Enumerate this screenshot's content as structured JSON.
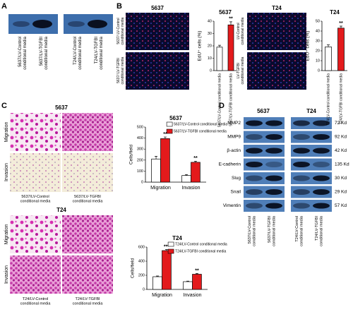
{
  "panel_labels": [
    "A",
    "B",
    "C",
    "D"
  ],
  "panel_a": {
    "labels": [
      [
        "5637/LV-Control",
        "conditional media"
      ],
      [
        "5637/LV-TGFBI",
        "conditional media"
      ],
      [
        "T24/LV-Control",
        "conditional media"
      ],
      [
        "T24/LV-TGFBI",
        "conditional media"
      ]
    ]
  },
  "panel_b": {
    "titles": [
      "5637",
      "T24"
    ],
    "labels": [
      [
        "5637/ LV-Control",
        "conditional media"
      ],
      [
        "5637/ LV-TGFBI",
        "conditional media"
      ],
      [
        "LV-Control",
        "conditional media"
      ],
      [
        "LV-TGFBI",
        "conditional media"
      ]
    ]
  },
  "panel_c": {
    "titles": [
      "5637",
      "T24"
    ],
    "rows": [
      "Migration",
      "Invasion"
    ],
    "labels": [
      [
        "5637/LV-Control",
        "conditional media"
      ],
      [
        "5637/LV-TGFBI",
        "conditional media"
      ],
      [
        "T24/LV-Control",
        "conditional media"
      ],
      [
        "T24/LV-TGFBI",
        "conditional media"
      ]
    ]
  },
  "panel_d": {
    "titles": [
      "5637",
      "T24"
    ],
    "proteins": [
      "MMP2",
      "MMP9",
      "β-actin",
      "E-cadherin",
      "Slug",
      "Snail",
      "Vimentin"
    ],
    "weights": [
      "72 Kd",
      "92 Kd",
      "42 Kd",
      "135 Kd",
      "30 Kd",
      "29 Kd",
      "57 Kd"
    ],
    "labels": [
      [
        "5637/LV-Control",
        "conditional media"
      ],
      [
        "5637/LV-TGFBI",
        "conditional media"
      ],
      [
        "T24/LV-Control",
        "conditional media"
      ],
      [
        "T24/LV-TGFBI",
        "conditional media"
      ]
    ]
  },
  "chart_data": [
    {
      "type": "bar",
      "title": "5637",
      "ylabel": "EdU⁺ cells (%)",
      "categories": [
        "5637/LV-Control conditional media",
        "5637/LV-TGFBI conditional media"
      ],
      "values": [
        19,
        37
      ],
      "errors": [
        1.5,
        2.5
      ],
      "colors": [
        "#ffffff",
        "#e31a1c"
      ],
      "significance": [
        null,
        "**"
      ],
      "ylim": [
        0,
        40
      ],
      "yticks": [
        0,
        10,
        20,
        30,
        40
      ]
    },
    {
      "type": "bar",
      "title": "T24",
      "ylabel": "EdU⁺ cells (%)",
      "categories": [
        "T24/LV-Control conditional media",
        "T24/LV-TGFBI conditional media"
      ],
      "values": [
        24,
        43
      ],
      "errors": [
        2,
        2
      ],
      "colors": [
        "#ffffff",
        "#e31a1c"
      ],
      "significance": [
        null,
        "**"
      ],
      "ylim": [
        0,
        50
      ],
      "yticks": [
        0,
        10,
        20,
        30,
        40,
        50
      ]
    },
    {
      "type": "bar",
      "title": "5637",
      "ylabel": "Cells/field",
      "categories": [
        "Migration",
        "Invasion"
      ],
      "series": [
        {
          "name": "5637/LV-Control conditional media",
          "color": "#ffffff",
          "values": [
            210,
            60
          ],
          "errors": [
            25,
            8
          ]
        },
        {
          "name": "5637/LV-TGFBI conditional media",
          "color": "#e31a1c",
          "values": [
            395,
            180
          ],
          "errors": [
            15,
            10
          ],
          "significance": [
            "**",
            "**"
          ]
        }
      ],
      "ylim": [
        0,
        500
      ],
      "yticks": [
        0,
        100,
        200,
        300,
        400,
        500
      ]
    },
    {
      "type": "bar",
      "title": "T24",
      "ylabel": "Cells/field",
      "categories": [
        "Migration",
        "Invasion"
      ],
      "series": [
        {
          "name": "T24/LV-Control conditional media",
          "color": "#ffffff",
          "values": [
            180,
            110
          ],
          "errors": [
            10,
            8
          ]
        },
        {
          "name": "T24/LV-TGFBI conditional media",
          "color": "#e31a1c",
          "values": [
            550,
            215
          ],
          "errors": [
            15,
            10
          ],
          "significance": [
            "***",
            "**"
          ]
        }
      ],
      "ylim": [
        0,
        600
      ],
      "yticks": [
        0,
        200,
        400,
        600
      ]
    }
  ]
}
